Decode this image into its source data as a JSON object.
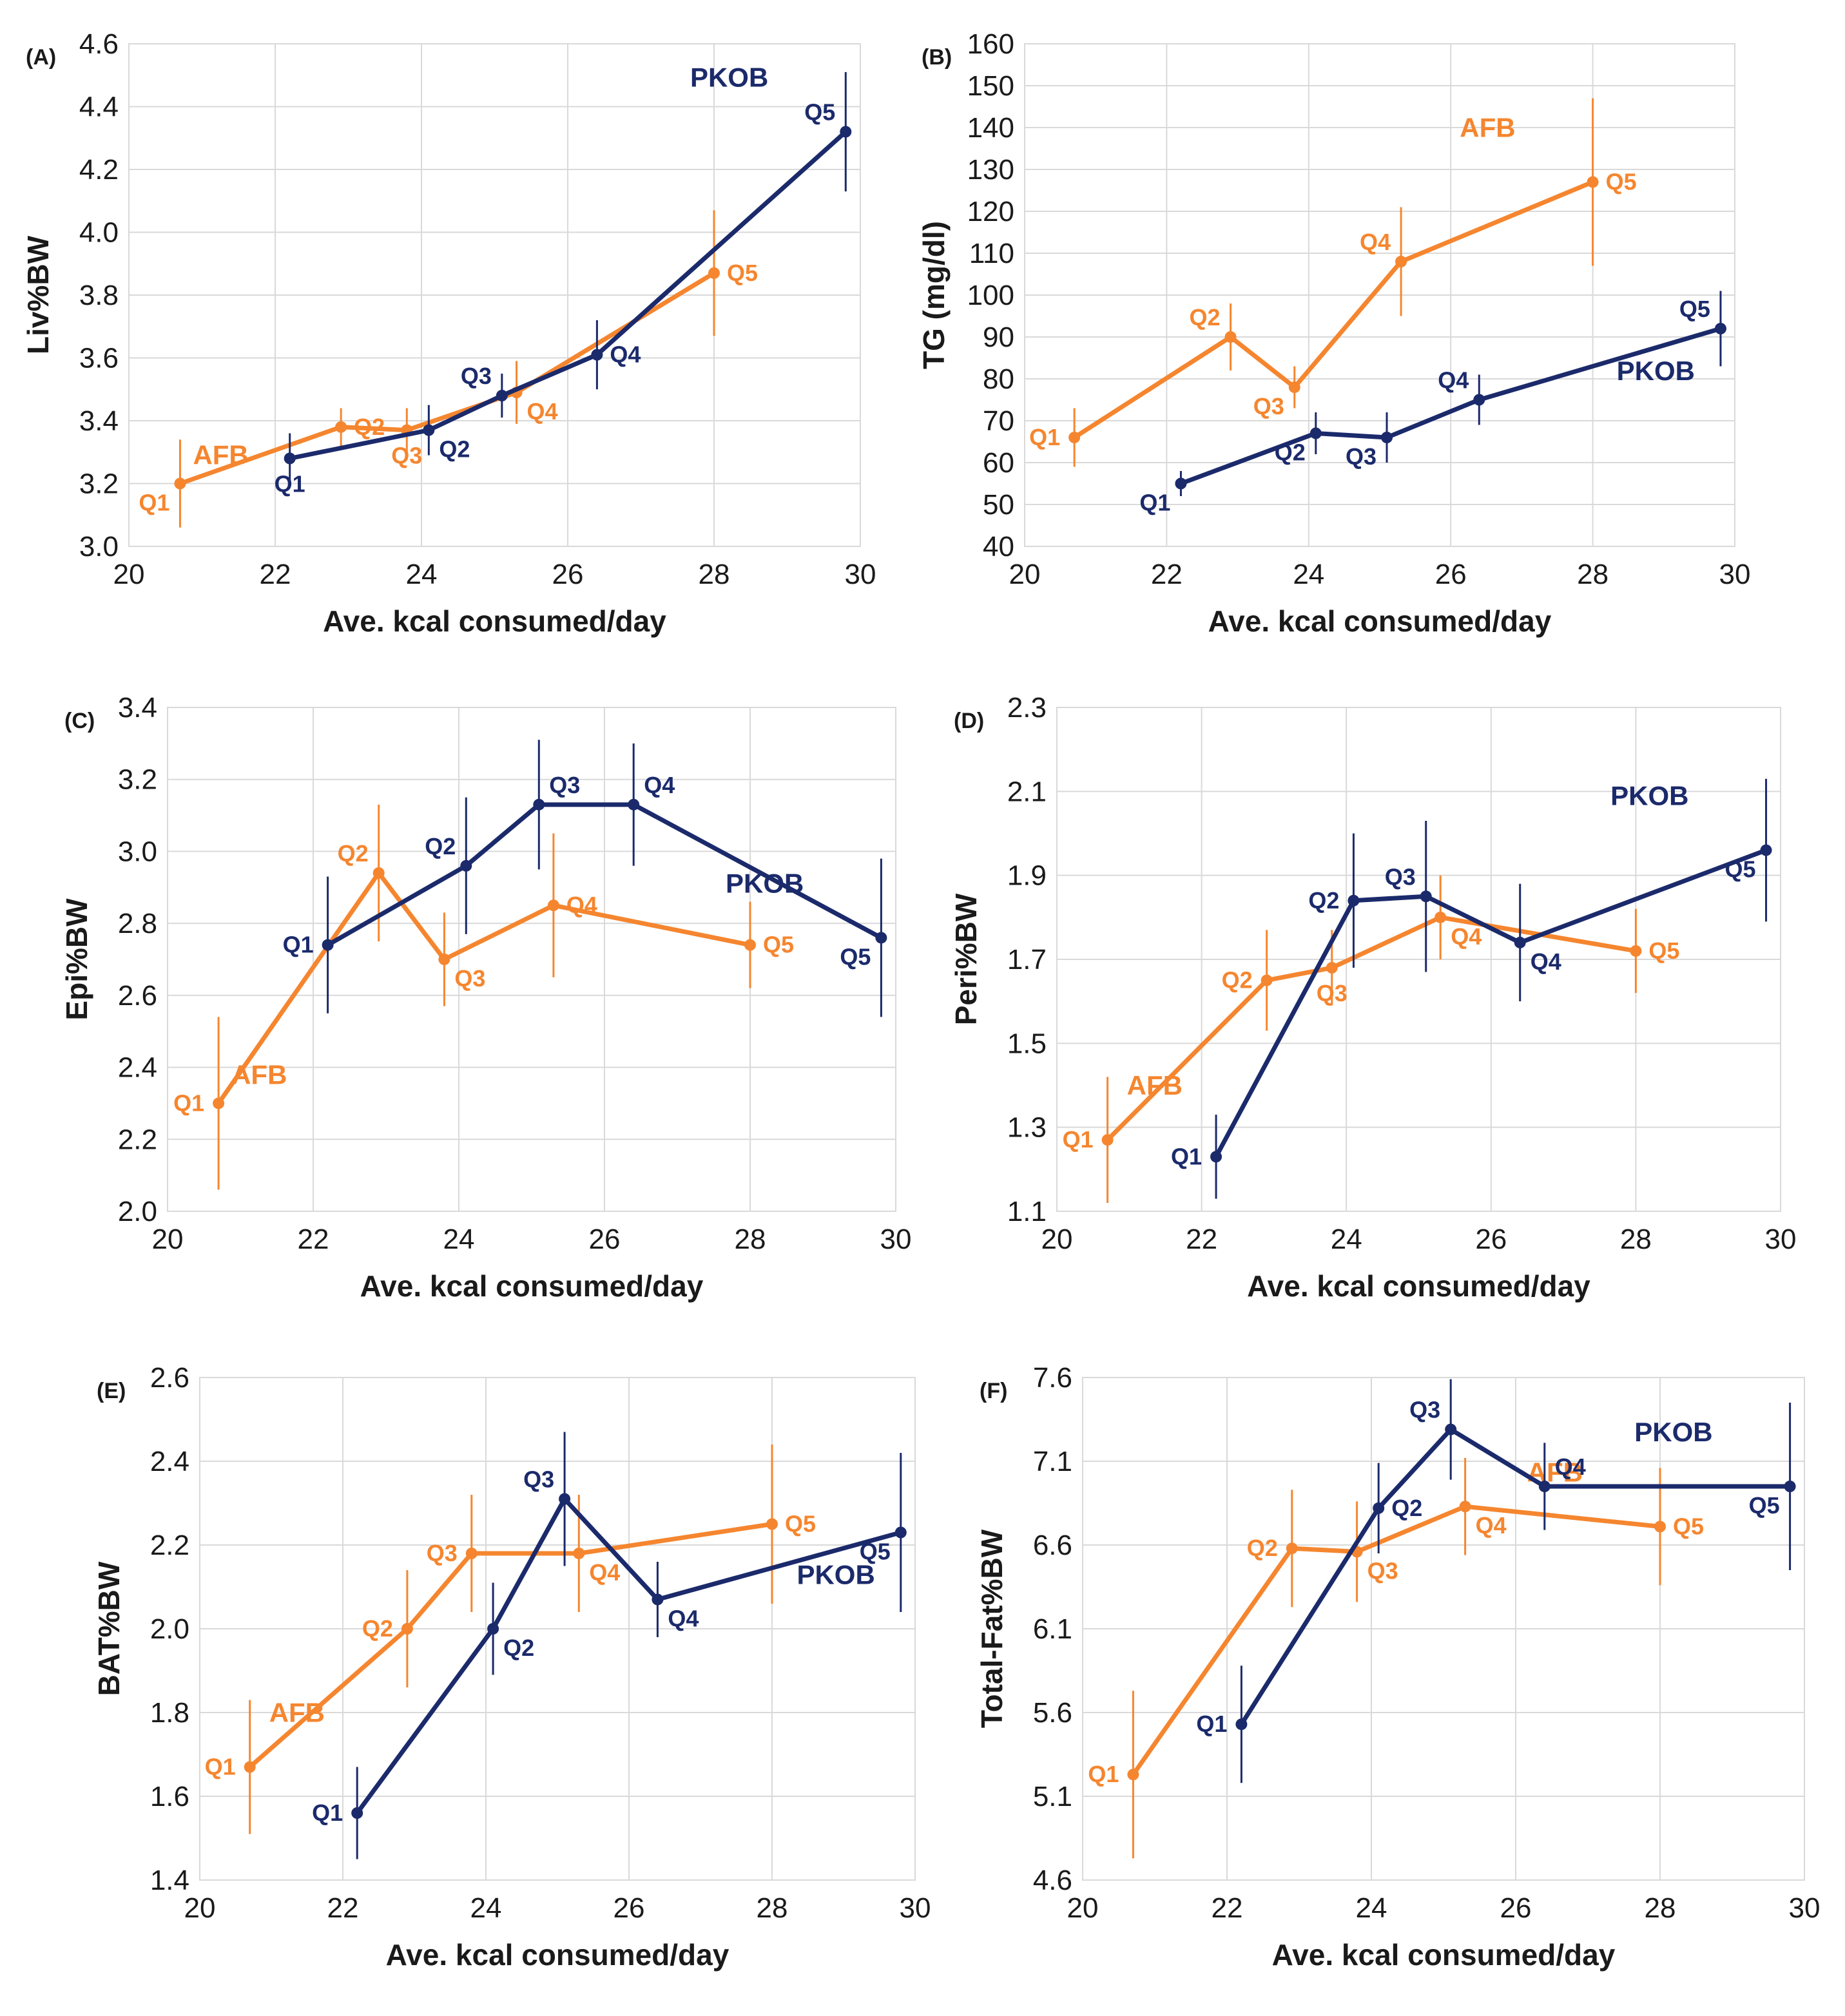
{
  "colors": {
    "AFB": "#F5862F",
    "PKOB": "#1B2A6B",
    "grid": "#d9d9d9",
    "text": "#1a1a1a"
  },
  "chart_data": [
    {
      "type": "line",
      "panel": "(A)",
      "xlabel": "Ave. kcal consumed/day",
      "ylabel": "Liv%BW",
      "xlim": [
        20,
        30
      ],
      "ylim": [
        3.0,
        4.6
      ],
      "xticks": [
        20,
        22,
        24,
        26,
        28,
        30
      ],
      "yticks": [
        3.0,
        3.2,
        3.4,
        3.6,
        3.8,
        4.0,
        4.2,
        4.4,
        4.6
      ],
      "ydecimals": 1,
      "series": [
        {
          "name": "AFB",
          "label_pos": "right",
          "x": [
            20.7,
            22.9,
            23.8,
            25.3,
            28.0
          ],
          "y": [
            3.2,
            3.38,
            3.37,
            3.49,
            3.87
          ],
          "err": [
            0.14,
            0.06,
            0.07,
            0.1,
            0.2
          ],
          "point_labels": [
            "Q1",
            "Q2",
            "Q3",
            "Q4",
            "Q5"
          ],
          "point_label_pos": [
            "bl",
            "r",
            "b",
            "br",
            "r"
          ]
        },
        {
          "name": "PKOB",
          "label_pos": "above-left",
          "x": [
            22.2,
            24.1,
            25.1,
            26.4,
            29.8
          ],
          "y": [
            3.28,
            3.37,
            3.48,
            3.61,
            4.32
          ],
          "err": [
            0.08,
            0.08,
            0.07,
            0.11,
            0.19
          ],
          "point_labels": [
            "Q1",
            "Q2",
            "Q3",
            "Q4",
            "Q5"
          ],
          "point_label_pos": [
            "b",
            "br",
            "tl",
            "r",
            "tl"
          ]
        }
      ]
    },
    {
      "type": "line",
      "panel": "(B)",
      "xlabel": "Ave. kcal consumed/day",
      "ylabel": "TG (mg/dl)",
      "xlim": [
        20,
        30
      ],
      "ylim": [
        40,
        160
      ],
      "xticks": [
        20,
        22,
        24,
        26,
        28,
        30
      ],
      "yticks": [
        40,
        50,
        60,
        70,
        80,
        90,
        100,
        110,
        120,
        130,
        140,
        150,
        160
      ],
      "ydecimals": 0,
      "series": [
        {
          "name": "AFB",
          "label_pos": "above-left",
          "x": [
            20.7,
            22.9,
            23.8,
            25.3,
            28.0
          ],
          "y": [
            66,
            90,
            78,
            108,
            127
          ],
          "err": [
            7,
            8,
            5,
            13,
            20
          ],
          "point_labels": [
            "Q1",
            "Q2",
            "Q3",
            "Q4",
            "Q5"
          ],
          "point_label_pos": [
            "l",
            "tl",
            "bl",
            "tl",
            "r"
          ]
        },
        {
          "name": "PKOB",
          "label_pos": "below-left",
          "x": [
            22.2,
            24.1,
            25.1,
            26.4,
            29.8
          ],
          "y": [
            55,
            67,
            66,
            75,
            92
          ],
          "err": [
            3,
            5,
            6,
            6,
            9
          ],
          "point_labels": [
            "Q1",
            "Q2",
            "Q3",
            "Q4",
            "Q5"
          ],
          "point_label_pos": [
            "bl",
            "bl",
            "bl",
            "tl",
            "tl"
          ]
        }
      ]
    },
    {
      "type": "line",
      "panel": "(C)",
      "xlabel": "Ave. kcal consumed/day",
      "ylabel": "Epi%BW",
      "xlim": [
        20,
        30
      ],
      "ylim": [
        2.0,
        3.4
      ],
      "xticks": [
        20,
        22,
        24,
        26,
        28,
        30
      ],
      "yticks": [
        2.0,
        2.2,
        2.4,
        2.6,
        2.8,
        3.0,
        3.2,
        3.4
      ],
      "ydecimals": 1,
      "series": [
        {
          "name": "AFB",
          "label_pos": "right",
          "x": [
            20.7,
            22.9,
            23.8,
            25.3,
            28.0
          ],
          "y": [
            2.3,
            2.94,
            2.7,
            2.85,
            2.74
          ],
          "err": [
            0.24,
            0.19,
            0.13,
            0.2,
            0.12
          ],
          "point_labels": [
            "Q1",
            "Q2",
            "Q3",
            "Q4",
            "Q5"
          ],
          "point_label_pos": [
            "l",
            "tl",
            "br",
            "r",
            "r"
          ]
        },
        {
          "name": "PKOB",
          "label_pos": "above-left",
          "x": [
            22.2,
            24.1,
            25.1,
            26.4,
            29.8
          ],
          "y": [
            2.74,
            2.96,
            3.13,
            3.13,
            2.76
          ],
          "err": [
            0.19,
            0.19,
            0.18,
            0.17,
            0.22
          ],
          "point_labels": [
            "Q1",
            "Q2",
            "Q3",
            "Q4",
            "Q5"
          ],
          "point_label_pos": [
            "l",
            "tl",
            "tr",
            "tr",
            "bl"
          ]
        }
      ]
    },
    {
      "type": "line",
      "panel": "(D)",
      "xlabel": "Ave. kcal consumed/day",
      "ylabel": "Peri%BW",
      "xlim": [
        20,
        30
      ],
      "ylim": [
        1.1,
        2.3
      ],
      "xticks": [
        20,
        22,
        24,
        26,
        28,
        30
      ],
      "yticks": [
        1.1,
        1.3,
        1.5,
        1.7,
        1.9,
        2.1,
        2.3
      ],
      "ydecimals": 1,
      "series": [
        {
          "name": "AFB",
          "label_pos": "above-right",
          "x": [
            20.7,
            22.9,
            23.8,
            25.3,
            28.0
          ],
          "y": [
            1.27,
            1.65,
            1.68,
            1.8,
            1.72
          ],
          "err": [
            0.15,
            0.12,
            0.09,
            0.1,
            0.1
          ],
          "point_labels": [
            "Q1",
            "Q2",
            "Q3",
            "Q4",
            "Q5"
          ],
          "point_label_pos": [
            "l",
            "l",
            "b",
            "br",
            "r"
          ]
        },
        {
          "name": "PKOB",
          "label_pos": "above-left",
          "x": [
            22.2,
            24.1,
            25.1,
            26.4,
            29.8
          ],
          "y": [
            1.23,
            1.84,
            1.85,
            1.74,
            1.96
          ],
          "err": [
            0.1,
            0.16,
            0.18,
            0.14,
            0.17
          ],
          "point_labels": [
            "Q1",
            "Q2",
            "Q3",
            "Q4",
            "Q5"
          ],
          "point_label_pos": [
            "l",
            "l",
            "tl",
            "br",
            "bl"
          ]
        }
      ]
    },
    {
      "type": "line",
      "panel": "(E)",
      "xlabel": "Ave. kcal consumed/day",
      "ylabel": "BAT%BW",
      "xlim": [
        20,
        30
      ],
      "ylim": [
        1.4,
        2.6
      ],
      "xticks": [
        20,
        22,
        24,
        26,
        28,
        30
      ],
      "yticks": [
        1.4,
        1.6,
        1.8,
        2.0,
        2.2,
        2.4,
        2.6
      ],
      "ydecimals": 1,
      "series": [
        {
          "name": "AFB",
          "label_pos": "above-right",
          "x": [
            20.7,
            22.9,
            23.8,
            25.3,
            28.0
          ],
          "y": [
            1.67,
            2.0,
            2.18,
            2.18,
            2.25
          ],
          "err": [
            0.16,
            0.14,
            0.14,
            0.14,
            0.19
          ],
          "point_labels": [
            "Q1",
            "Q2",
            "Q3",
            "Q4",
            "Q5"
          ],
          "point_label_pos": [
            "l",
            "l",
            "l",
            "br",
            "r"
          ]
        },
        {
          "name": "PKOB",
          "label_pos": "below-left",
          "x": [
            22.2,
            24.1,
            25.1,
            26.4,
            29.8
          ],
          "y": [
            1.56,
            2.0,
            2.31,
            2.07,
            2.23
          ],
          "err": [
            0.11,
            0.11,
            0.16,
            0.09,
            0.19
          ],
          "point_labels": [
            "Q1",
            "Q2",
            "Q3",
            "Q4",
            "Q5"
          ],
          "point_label_pos": [
            "l",
            "br",
            "tl",
            "br",
            "bl"
          ]
        }
      ]
    },
    {
      "type": "line",
      "panel": "(F)",
      "xlabel": "Ave. kcal consumed/day",
      "ylabel": "Total-Fat%BW",
      "xlim": [
        20,
        30
      ],
      "ylim": [
        4.6,
        7.6
      ],
      "xticks": [
        20,
        22,
        24,
        26,
        28,
        30
      ],
      "yticks": [
        4.6,
        5.1,
        5.6,
        6.1,
        6.6,
        7.1,
        7.6
      ],
      "ydecimals": 1,
      "series": [
        {
          "name": "AFB",
          "label_pos": "above-left",
          "x": [
            20.7,
            22.9,
            23.8,
            25.3,
            28.0
          ],
          "y": [
            5.23,
            6.58,
            6.56,
            6.83,
            6.71
          ],
          "err": [
            0.5,
            0.35,
            0.3,
            0.29,
            0.35
          ],
          "point_labels": [
            "Q1",
            "Q2",
            "Q3",
            "Q4",
            "Q5"
          ],
          "point_label_pos": [
            "l",
            "l",
            "br",
            "br",
            "r"
          ]
        },
        {
          "name": "PKOB",
          "label_pos": "above-left",
          "x": [
            22.2,
            24.1,
            25.1,
            26.4,
            29.8
          ],
          "y": [
            5.53,
            6.82,
            7.29,
            6.95,
            6.95
          ],
          "err": [
            0.35,
            0.27,
            0.3,
            0.26,
            0.5
          ],
          "point_labels": [
            "Q1",
            "Q2",
            "Q3",
            "Q4",
            "Q5"
          ],
          "point_label_pos": [
            "l",
            "r",
            "tl",
            "tr",
            "bl"
          ]
        }
      ]
    }
  ]
}
